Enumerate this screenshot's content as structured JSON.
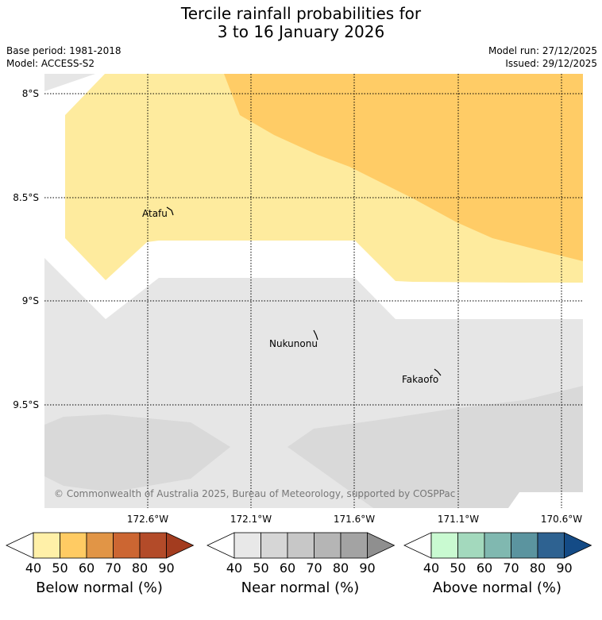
{
  "title": {
    "line1": "Tercile rainfall probabilities for",
    "line2": "3 to 16 January 2026"
  },
  "meta": {
    "base_period": "Base period: 1981-2018",
    "model": "Model: ACCESS-S2",
    "model_run": "Model run: 27/12/2025",
    "issued": "Issued: 29/12/2025"
  },
  "map": {
    "lat_labels": [
      "8°S",
      "8.5°S",
      "9°S",
      "9.5°S"
    ],
    "lon_labels": [
      "172.6°W",
      "172.1°W",
      "171.6°W",
      "171.1°W",
      "170.6°W"
    ],
    "places": [
      "Atafu",
      "Nukunonu",
      "Fakaofo"
    ],
    "copyright": "© Commonwealth of Australia 2025, Bureau of Meteorology, supported by COSPPac"
  },
  "colorbars": [
    {
      "label": "Below normal (%)",
      "ticks": [
        "40",
        "50",
        "60",
        "70",
        "80",
        "90"
      ],
      "colors": [
        "#fff0a8",
        "#ffcb63",
        "#e19546",
        "#cc6632",
        "#b34b29",
        "#a33c1f"
      ]
    },
    {
      "label": "Near normal (%)",
      "ticks": [
        "40",
        "50",
        "60",
        "70",
        "80",
        "90"
      ],
      "colors": [
        "#e8e8e8",
        "#d6d6d6",
        "#c7c7c7",
        "#b5b5b5",
        "#a3a3a3",
        "#8f8f8f"
      ]
    },
    {
      "label": "Above normal (%)",
      "ticks": [
        "40",
        "50",
        "60",
        "70",
        "80",
        "90"
      ],
      "colors": [
        "#c9fad1",
        "#a3d9bd",
        "#80b8b0",
        "#5b949f",
        "#2e6291",
        "#144b86"
      ]
    }
  ],
  "colors": {
    "below_light": "#feeb9e",
    "below_mid": "#ffcc66",
    "near_light": "#e6e6e6",
    "near_mid": "#d9d9d9"
  }
}
